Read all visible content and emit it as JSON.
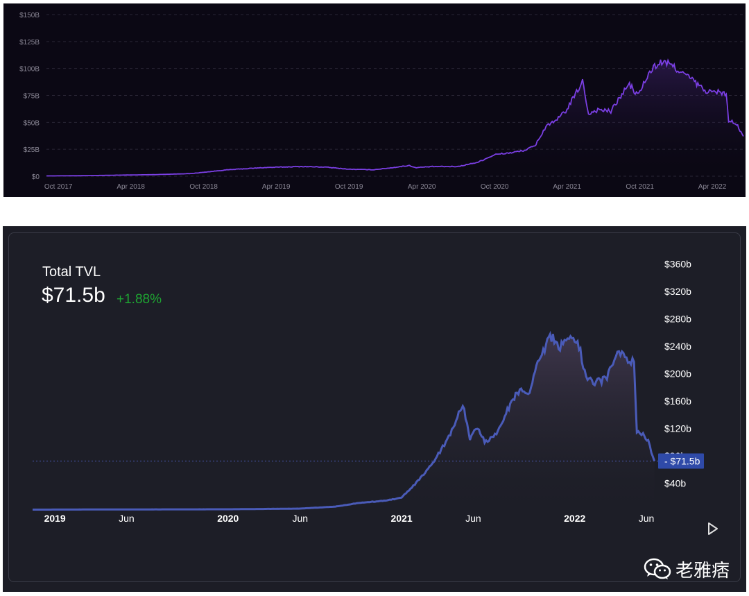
{
  "chart_data": [
    {
      "type": "area",
      "title": "",
      "xlabel": "",
      "ylabel": "",
      "ylim": [
        0,
        150
      ],
      "y_unit": "billion USD",
      "y_ticks": [
        "$150B",
        "$125B",
        "$100B",
        "$75B",
        "$50B",
        "$25B",
        "$0"
      ],
      "y_tick_values": [
        150,
        125,
        100,
        75,
        50,
        25,
        0
      ],
      "x_ticks": [
        "Oct 2017",
        "Apr 2018",
        "Oct 2018",
        "Apr 2019",
        "Oct 2019",
        "Apr 2020",
        "Oct 2020",
        "Apr 2021",
        "Oct 2021",
        "Apr 2022"
      ],
      "x_tick_dates": [
        "2017-10-01",
        "2018-04-01",
        "2018-10-01",
        "2019-04-01",
        "2019-10-01",
        "2020-04-01",
        "2020-10-01",
        "2021-04-01",
        "2021-10-01",
        "2022-04-01"
      ],
      "xlim": [
        "2017-09-01",
        "2022-06-20"
      ],
      "grid": true,
      "line_color": "#7b3fe4",
      "background": "#0b0814",
      "series": [
        {
          "points": [
            [
              "2017-09-01",
              0.3
            ],
            [
              "2017-12-01",
              0.5
            ],
            [
              "2018-03-01",
              1.0
            ],
            [
              "2018-06-01",
              1.5
            ],
            [
              "2018-09-01",
              2.5
            ],
            [
              "2018-12-01",
              6.0
            ],
            [
              "2019-03-01",
              8.0
            ],
            [
              "2019-06-01",
              9.0
            ],
            [
              "2019-08-01",
              8.5
            ],
            [
              "2019-10-01",
              6.5
            ],
            [
              "2019-12-01",
              6.0
            ],
            [
              "2020-01-20",
              8.0
            ],
            [
              "2020-03-01",
              10.0
            ],
            [
              "2020-03-15",
              8.0
            ],
            [
              "2020-05-01",
              9.0
            ],
            [
              "2020-07-01",
              9.0
            ],
            [
              "2020-08-20",
              13.0
            ],
            [
              "2020-10-01",
              20.0
            ],
            [
              "2020-11-15",
              22.0
            ],
            [
              "2020-12-15",
              24.0
            ],
            [
              "2021-01-10",
              28.0
            ],
            [
              "2021-02-10",
              48.0
            ],
            [
              "2021-03-01",
              50.0
            ],
            [
              "2021-04-01",
              62.0
            ],
            [
              "2021-05-10",
              88.0
            ],
            [
              "2021-05-25",
              58.0
            ],
            [
              "2021-06-20",
              62.0
            ],
            [
              "2021-07-20",
              60.0
            ],
            [
              "2021-08-20",
              78.0
            ],
            [
              "2021-09-05",
              85.0
            ],
            [
              "2021-09-25",
              75.0
            ],
            [
              "2021-11-01",
              100.0
            ],
            [
              "2021-11-25",
              106.0
            ],
            [
              "2021-12-20",
              103.0
            ],
            [
              "2022-01-20",
              95.0
            ],
            [
              "2022-02-15",
              88.0
            ],
            [
              "2022-03-10",
              80.0
            ],
            [
              "2022-03-31",
              78.0
            ],
            [
              "2022-04-25",
              78.0
            ],
            [
              "2022-05-06",
              75.0
            ],
            [
              "2022-05-12",
              52.0
            ],
            [
              "2022-06-01",
              48.0
            ],
            [
              "2022-06-18",
              37.0
            ]
          ]
        }
      ]
    },
    {
      "type": "area",
      "title": "Total TVL",
      "value": "$71.5b",
      "change": "+1.88%",
      "change_color": "#1ea532",
      "xlabel": "",
      "ylabel": "",
      "ylim": [
        0,
        380
      ],
      "y_unit": "billion USD",
      "y_ticks": [
        "$360b",
        "$320b",
        "$280b",
        "$240b",
        "$200b",
        "$160b",
        "$120b",
        "$80b",
        "$40b"
      ],
      "y_tick_values": [
        360,
        320,
        280,
        240,
        200,
        160,
        120,
        80,
        40
      ],
      "x_ticks": [
        "2019",
        "Jun",
        "2020",
        "Jun",
        "2021",
        "Jun",
        "2022",
        "Jun"
      ],
      "x_tick_dates": [
        "2019-01-01",
        "2019-06-01",
        "2020-01-01",
        "2020-06-01",
        "2021-01-01",
        "2021-06-01",
        "2022-01-01",
        "2022-06-01"
      ],
      "xlim": [
        "2018-11-15",
        "2022-06-20"
      ],
      "current_value_label": "$71.5b",
      "current_value": 71.5,
      "grid": false,
      "line_color": "#4a5bb8",
      "background": "#1d1e27",
      "series": [
        {
          "points": [
            [
              "2018-11-15",
              0.5
            ],
            [
              "2019-06-01",
              0.8
            ],
            [
              "2020-01-01",
              1.0
            ],
            [
              "2020-06-01",
              2.0
            ],
            [
              "2020-08-15",
              5.0
            ],
            [
              "2020-10-01",
              10.0
            ],
            [
              "2020-12-01",
              14.0
            ],
            [
              "2021-01-01",
              18.0
            ],
            [
              "2021-02-01",
              40.0
            ],
            [
              "2021-03-01",
              62.0
            ],
            [
              "2021-04-01",
              95.0
            ],
            [
              "2021-04-20",
              120.0
            ],
            [
              "2021-05-10",
              155.0
            ],
            [
              "2021-05-25",
              105.0
            ],
            [
              "2021-06-10",
              120.0
            ],
            [
              "2021-06-25",
              100.0
            ],
            [
              "2021-07-20",
              110.0
            ],
            [
              "2021-08-15",
              150.0
            ],
            [
              "2021-09-10",
              180.0
            ],
            [
              "2021-09-25",
              165.0
            ],
            [
              "2021-10-15",
              215.0
            ],
            [
              "2021-11-10",
              255.0
            ],
            [
              "2021-12-01",
              240.0
            ],
            [
              "2021-12-20",
              248.0
            ],
            [
              "2022-01-10",
              240.0
            ],
            [
              "2022-01-25",
              190.0
            ],
            [
              "2022-02-15",
              185.0
            ],
            [
              "2022-03-10",
              195.0
            ],
            [
              "2022-04-01",
              235.0
            ],
            [
              "2022-04-20",
              220.0
            ],
            [
              "2022-05-06",
              215.0
            ],
            [
              "2022-05-12",
              115.0
            ],
            [
              "2022-05-25",
              110.0
            ],
            [
              "2022-06-05",
              100.0
            ],
            [
              "2022-06-18",
              71.5
            ]
          ]
        }
      ]
    }
  ],
  "watermark": {
    "text": "老雅痞",
    "icon": "wechat-icon"
  },
  "controls": {
    "play_icon": "play-icon"
  }
}
